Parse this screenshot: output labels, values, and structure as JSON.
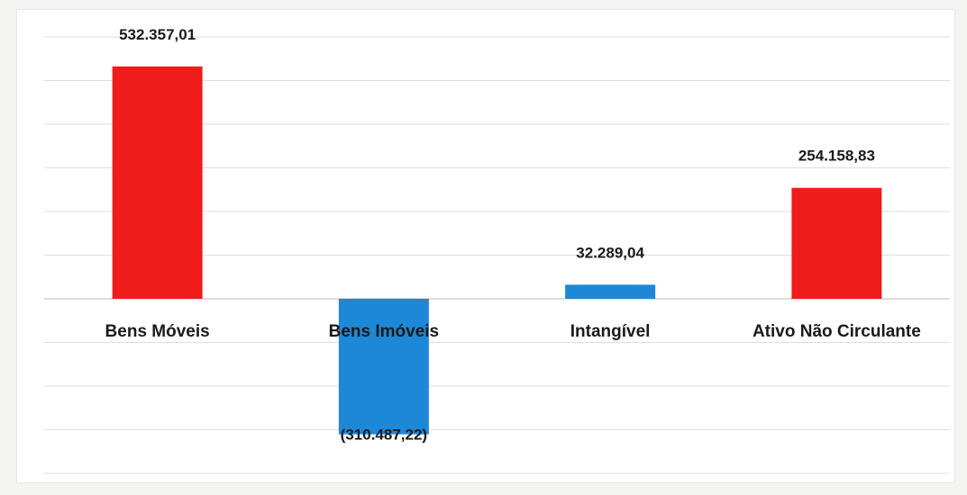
{
  "chart_data": {
    "type": "bar",
    "title": "",
    "xlabel": "",
    "ylabel": "",
    "categories": [
      "Bens Móveis",
      "Bens Imóveis",
      "Intangível",
      "Ativo Não Circulante"
    ],
    "values": [
      532357.01,
      -310487.22,
      32289.04,
      254158.83
    ],
    "value_labels": [
      "532.357,01",
      "(310.487,22)",
      "32.289,04",
      "254.158,83"
    ],
    "ylim": [
      -400000,
      600000
    ],
    "grid": true,
    "legend": "none",
    "colors": {
      "positive": "#ef1c1c",
      "negative": "#1e88d8",
      "intangivel": "#1e88d8"
    },
    "bar_colors": [
      "#ef1c1c",
      "#1e88d8",
      "#1e88d8",
      "#ef1c1c"
    ]
  }
}
